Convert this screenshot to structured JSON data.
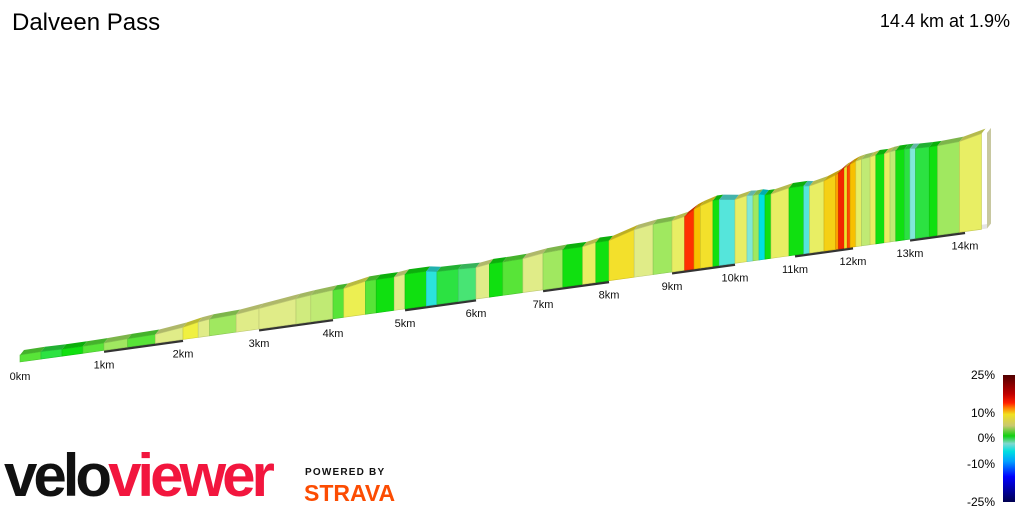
{
  "header": {
    "title": "Dalveen Pass",
    "summary": "14.4 km at 1.9%"
  },
  "branding": {
    "logo_velo": "velo",
    "logo_viewer": "viewer",
    "powered_by": "POWERED BY",
    "strava": "STRAVA",
    "colors": {
      "velo": "#111111",
      "viewer": "#f2163e",
      "strava": "#fc4c02"
    }
  },
  "legend": {
    "labels": [
      "25%",
      "10%",
      "0%",
      "-10%",
      "-25%"
    ]
  },
  "chart_data": {
    "type": "area",
    "description_type": "3d-gradient-elevation-profile",
    "title": "Dalveen Pass",
    "total_distance_km": 14.4,
    "average_grade_pct": 1.9,
    "x_ticks": [
      "0km",
      "1km",
      "2km",
      "3km",
      "4km",
      "5km",
      "6km",
      "7km",
      "8km",
      "9km",
      "10km",
      "11km",
      "12km",
      "13km",
      "14km"
    ],
    "color_scale": {
      "min_pct": -25,
      "max_pct": 25,
      "ticks_pct": [
        25,
        10,
        0,
        -10,
        -25
      ]
    },
    "segments": [
      {
        "length_km": 0.25,
        "grade_pct": 0.5
      },
      {
        "length_km": 0.25,
        "grade_pct": -0.5
      },
      {
        "length_km": 0.25,
        "grade_pct": 0
      },
      {
        "length_km": 0.25,
        "grade_pct": 0.5
      },
      {
        "length_km": 0.3,
        "grade_pct": 1
      },
      {
        "length_km": 0.35,
        "grade_pct": 0.5
      },
      {
        "length_km": 0.35,
        "grade_pct": 3
      },
      {
        "length_km": 0.2,
        "grade_pct": 5
      },
      {
        "length_km": 0.15,
        "grade_pct": 3
      },
      {
        "length_km": 0.35,
        "grade_pct": 1
      },
      {
        "length_km": 0.3,
        "grade_pct": 3
      },
      {
        "length_km": 0.5,
        "grade_pct": 3
      },
      {
        "length_km": 0.2,
        "grade_pct": 2.5
      },
      {
        "length_km": 0.3,
        "grade_pct": 2
      },
      {
        "length_km": 0.15,
        "grade_pct": 0.5
      },
      {
        "length_km": 0.3,
        "grade_pct": 4.5
      },
      {
        "length_km": 0.15,
        "grade_pct": 0.5
      },
      {
        "length_km": 0.25,
        "grade_pct": 0
      },
      {
        "length_km": 0.15,
        "grade_pct": 3
      },
      {
        "length_km": 0.3,
        "grade_pct": 0
      },
      {
        "length_km": 0.15,
        "grade_pct": -4
      },
      {
        "length_km": 0.3,
        "grade_pct": -0.5
      },
      {
        "length_km": 0.25,
        "grade_pct": -1
      },
      {
        "length_km": 0.2,
        "grade_pct": 3
      },
      {
        "length_km": 0.2,
        "grade_pct": 0
      },
      {
        "length_km": 0.3,
        "grade_pct": 0.5
      },
      {
        "length_km": 0.3,
        "grade_pct": 3
      },
      {
        "length_km": 0.3,
        "grade_pct": 1
      },
      {
        "length_km": 0.3,
        "grade_pct": 0
      },
      {
        "length_km": 0.2,
        "grade_pct": 4
      },
      {
        "length_km": 0.2,
        "grade_pct": 0
      },
      {
        "length_km": 0.4,
        "grade_pct": 6
      },
      {
        "length_km": 0.3,
        "grade_pct": 3
      },
      {
        "length_km": 0.3,
        "grade_pct": 1
      },
      {
        "length_km": 0.2,
        "grade_pct": 4
      },
      {
        "length_km": 0.15,
        "grade_pct": 13
      },
      {
        "length_km": 0.1,
        "grade_pct": 8
      },
      {
        "length_km": 0.2,
        "grade_pct": 6
      },
      {
        "length_km": 0.1,
        "grade_pct": 0
      },
      {
        "length_km": 0.25,
        "grade_pct": -3
      },
      {
        "length_km": 0.2,
        "grade_pct": 4
      },
      {
        "length_km": 0.1,
        "grade_pct": -2
      },
      {
        "length_km": 0.1,
        "grade_pct": 1
      },
      {
        "length_km": 0.1,
        "grade_pct": -5
      },
      {
        "length_km": 0.1,
        "grade_pct": 0
      },
      {
        "length_km": 0.3,
        "grade_pct": 4
      },
      {
        "length_km": 0.25,
        "grade_pct": 0
      },
      {
        "length_km": 0.1,
        "grade_pct": -3
      },
      {
        "length_km": 0.25,
        "grade_pct": 4
      },
      {
        "length_km": 0.2,
        "grade_pct": 7
      },
      {
        "length_km": 0.05,
        "grade_pct": 9
      },
      {
        "length_km": 0.1,
        "grade_pct": 14
      },
      {
        "length_km": 0.05,
        "grade_pct": 6
      },
      {
        "length_km": 0.05,
        "grade_pct": 12
      },
      {
        "length_km": 0.1,
        "grade_pct": 8
      },
      {
        "length_km": 0.1,
        "grade_pct": 4
      },
      {
        "length_km": 0.15,
        "grade_pct": 2
      },
      {
        "length_km": 0.1,
        "grade_pct": 4
      },
      {
        "length_km": 0.15,
        "grade_pct": 0
      },
      {
        "length_km": 0.1,
        "grade_pct": 4
      },
      {
        "length_km": 0.1,
        "grade_pct": 2
      },
      {
        "length_km": 0.15,
        "grade_pct": 0
      },
      {
        "length_km": 0.1,
        "grade_pct": -0.5
      },
      {
        "length_km": 0.1,
        "grade_pct": -2
      },
      {
        "length_km": 0.25,
        "grade_pct": -0.5
      },
      {
        "length_km": 0.15,
        "grade_pct": 0
      },
      {
        "length_km": 0.4,
        "grade_pct": 1
      },
      {
        "length_km": 0.4,
        "grade_pct": 4
      }
    ]
  }
}
